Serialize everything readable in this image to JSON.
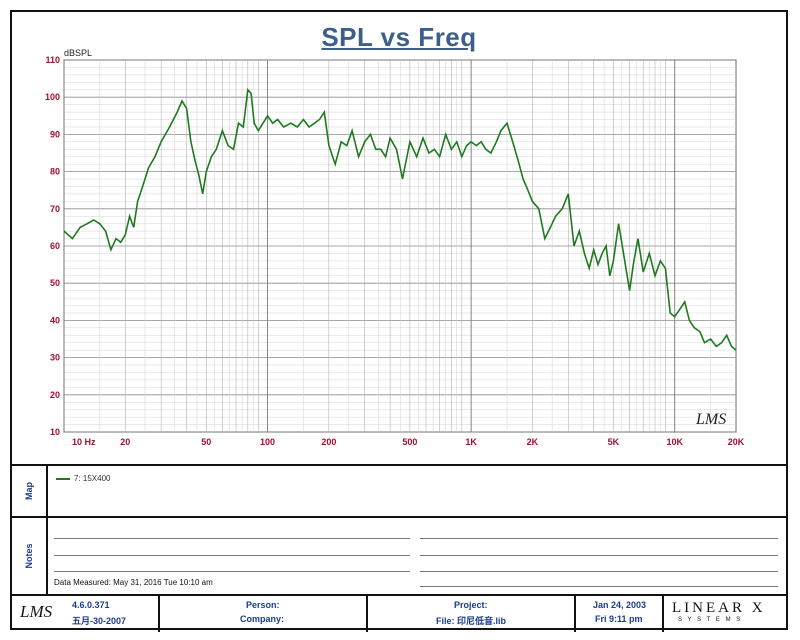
{
  "chart": {
    "title": "SPL vs Freq",
    "y_unit": "dBSPL",
    "watermark": "LMS"
  },
  "chart_data": {
    "type": "line",
    "x_scale": "log",
    "xlim": [
      10,
      20000
    ],
    "ylim": [
      10,
      110
    ],
    "x_ticks": [
      {
        "value": 10,
        "label": "10  Hz"
      },
      {
        "value": 20,
        "label": "20"
      },
      {
        "value": 50,
        "label": "50"
      },
      {
        "value": 100,
        "label": "100"
      },
      {
        "value": 200,
        "label": "200"
      },
      {
        "value": 500,
        "label": "500"
      },
      {
        "value": 1000,
        "label": "1K"
      },
      {
        "value": 2000,
        "label": "2K"
      },
      {
        "value": 5000,
        "label": "5K"
      },
      {
        "value": 10000,
        "label": "10K"
      },
      {
        "value": 20000,
        "label": "20K"
      }
    ],
    "y_ticks": [
      10,
      20,
      30,
      40,
      50,
      60,
      70,
      80,
      90,
      100,
      110
    ],
    "series": [
      {
        "name": "7: 15X400",
        "color": "#1e7a1e",
        "x": [
          10,
          11,
          12,
          13,
          14,
          15,
          16,
          17,
          18,
          19,
          20,
          21,
          22,
          23,
          24,
          26,
          28,
          30,
          33,
          36,
          38,
          40,
          42,
          44,
          46,
          48,
          50,
          53,
          56,
          60,
          64,
          68,
          72,
          76,
          80,
          83,
          86,
          90,
          95,
          100,
          106,
          112,
          120,
          130,
          140,
          150,
          160,
          170,
          180,
          190,
          200,
          215,
          230,
          245,
          260,
          280,
          300,
          320,
          340,
          360,
          380,
          400,
          430,
          460,
          500,
          540,
          580,
          620,
          660,
          700,
          750,
          800,
          850,
          900,
          950,
          1000,
          1060,
          1120,
          1180,
          1250,
          1330,
          1400,
          1500,
          1600,
          1700,
          1800,
          1900,
          2000,
          2150,
          2300,
          2450,
          2600,
          2800,
          3000,
          3200,
          3400,
          3600,
          3800,
          4000,
          4200,
          4400,
          4600,
          4800,
          5000,
          5300,
          5600,
          6000,
          6300,
          6600,
          7000,
          7500,
          8000,
          8500,
          9000,
          9500,
          10000,
          10600,
          11200,
          11800,
          12500,
          13300,
          14000,
          15000,
          16000,
          17000,
          18000,
          19000,
          20000
        ],
        "y": [
          64,
          62,
          65,
          66,
          67,
          66,
          64,
          59,
          62,
          61,
          63,
          68,
          65,
          72,
          75,
          81,
          84,
          88,
          92,
          96,
          99,
          97,
          88,
          83,
          79,
          74,
          80,
          84,
          86,
          91,
          87,
          86,
          93,
          92,
          102,
          101,
          93,
          91,
          93,
          95,
          93,
          94,
          92,
          93,
          92,
          94,
          92,
          93,
          94,
          96,
          87,
          82,
          88,
          87,
          91,
          84,
          88,
          90,
          86,
          86,
          84,
          89,
          86,
          78,
          88,
          84,
          89,
          85,
          86,
          84,
          90,
          86,
          88,
          84,
          87,
          88,
          87,
          88,
          86,
          85,
          88,
          91,
          93,
          88,
          83,
          78,
          75,
          72,
          70,
          62,
          65,
          68,
          70,
          74,
          60,
          64,
          58,
          54,
          59,
          55,
          58,
          60,
          52,
          56,
          66,
          58,
          48,
          56,
          62,
          53,
          58,
          52,
          56,
          54,
          42,
          41,
          43,
          45,
          40,
          38,
          37,
          34,
          35,
          33,
          34,
          36,
          33,
          32
        ]
      }
    ]
  },
  "map": {
    "side_label": "Map",
    "legend_entry": "7: 15X400"
  },
  "notes": {
    "side_label": "Notes",
    "measured": "Data Measured: May 31, 2016  Tue 10:10 am"
  },
  "footer": {
    "logo": "LMS",
    "version": "4.6.0.371",
    "version_date": "五月-30-2007",
    "person_label": "Person:",
    "company_label": "Company:",
    "project_label": "Project:",
    "file_label": "File: 印尼低音.lib",
    "date": "Jan 24, 2003",
    "time": "Fri  9:11 pm",
    "brand": "LINEAR X",
    "brand_sub": "S Y S T E M S"
  }
}
